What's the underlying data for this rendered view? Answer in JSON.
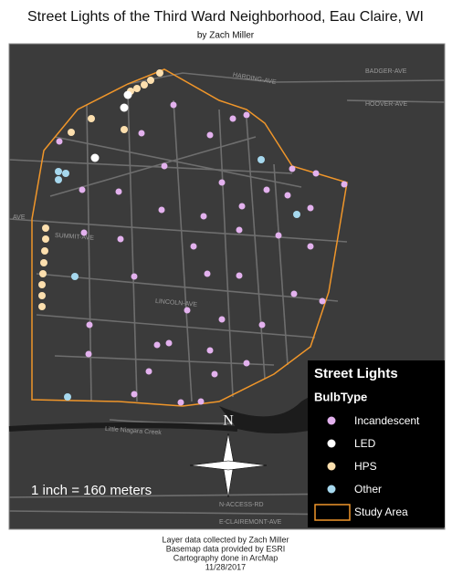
{
  "header": {
    "title": "Street Lights of the Third Ward Neighborhood, Eau Claire, WI",
    "subtitle": "by Zach Miller"
  },
  "map": {
    "streets": [
      "HARDING-AVE",
      "BADGER-AVE",
      "HOOVER-AVE",
      "AVE",
      "SUMMIT-AVE",
      "LINCOLN-AVE",
      "Little Niagara Creek",
      "N-ACCESS-RD",
      "E-CLAIREMONT-AVE"
    ],
    "north": "N",
    "scale": "1 inch = 160 meters"
  },
  "legend": {
    "title": "Street Lights",
    "field": "BulbType",
    "items": [
      "Incandescent",
      "LED",
      "HPS",
      "Other",
      "Study Area"
    ]
  },
  "credits": [
    "Layer data collected by Zach Miller",
    "Basemap data provided by ESRI",
    "Cartography done in ArcMap",
    "11/28/2017"
  ]
}
